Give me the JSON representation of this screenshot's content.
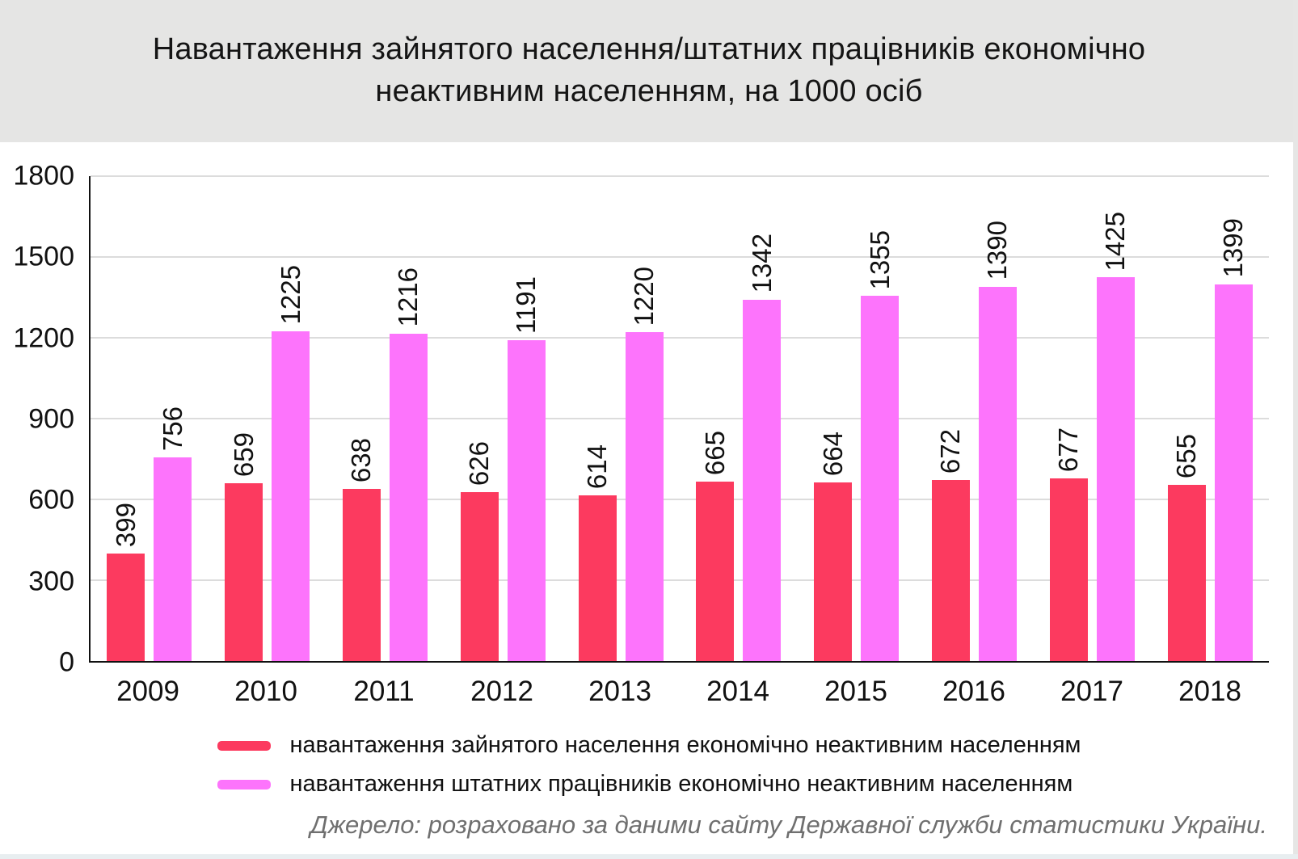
{
  "title_lines": [
    "Навантаження зайнятого населення/штатних працівників економічно",
    "неактивним населенням, на 1000 осіб"
  ],
  "source": "Джерело: розраховано за даними сайту Державної служби статистики України.",
  "chart_data": {
    "type": "bar",
    "title": "Навантаження зайнятого населення/штатних працівників економічно неактивним населенням, на 1000 осіб",
    "categories": [
      "2009",
      "2010",
      "2011",
      "2012",
      "2013",
      "2014",
      "2015",
      "2016",
      "2017",
      "2018"
    ],
    "series": [
      {
        "name": "навантаження зайнятого населення економічно неактивним населенням",
        "color": "#fc3a5f",
        "values": [
          399,
          659,
          638,
          626,
          614,
          665,
          664,
          672,
          677,
          655
        ]
      },
      {
        "name": "навантаження штатних працівників економічно неактивним населенням",
        "color": "#fd74fc",
        "values": [
          756,
          1225,
          1216,
          1191,
          1220,
          1342,
          1355,
          1390,
          1425,
          1399
        ]
      }
    ],
    "xlabel": "",
    "ylabel": "",
    "ylim": [
      0,
      1800
    ],
    "yticks": [
      1800,
      1500,
      1200,
      900,
      600,
      300,
      0
    ],
    "gridline_values": [
      1800,
      1500,
      1200,
      900,
      600,
      300
    ],
    "grid": true,
    "legend_position": "bottom",
    "value_label_rotation": -90
  },
  "colors": {
    "title_band_bg": "#e5e5e4",
    "gridline": "#dcdcdc",
    "axis": "#111111",
    "source_text": "#6f6f6f"
  }
}
